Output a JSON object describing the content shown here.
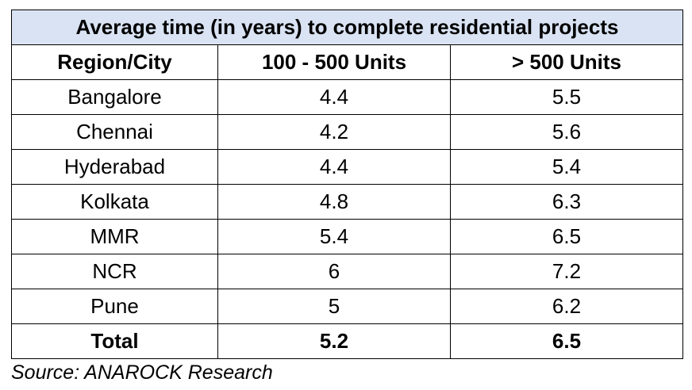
{
  "chart_data": {
    "type": "table",
    "title": "Average time (in years) to complete residential projects",
    "columns": [
      "Region/City",
      "100 - 500 Units",
      "> 500 Units"
    ],
    "rows": [
      [
        "Bangalore",
        "4.4",
        "5.5"
      ],
      [
        "Chennai",
        "4.2",
        "5.6"
      ],
      [
        "Hyderabad",
        "4.4",
        "5.4"
      ],
      [
        "Kolkata",
        "4.8",
        "6.3"
      ],
      [
        "MMR",
        "5.4",
        "6.5"
      ],
      [
        "NCR",
        "6",
        "7.2"
      ],
      [
        "Pune",
        "5",
        "6.2"
      ]
    ],
    "total_row": [
      "Total",
      "5.2",
      "6.5"
    ],
    "source": "Source: ANAROCK Research"
  },
  "colors": {
    "title_background": "#dae3f3",
    "border": "#000000"
  }
}
